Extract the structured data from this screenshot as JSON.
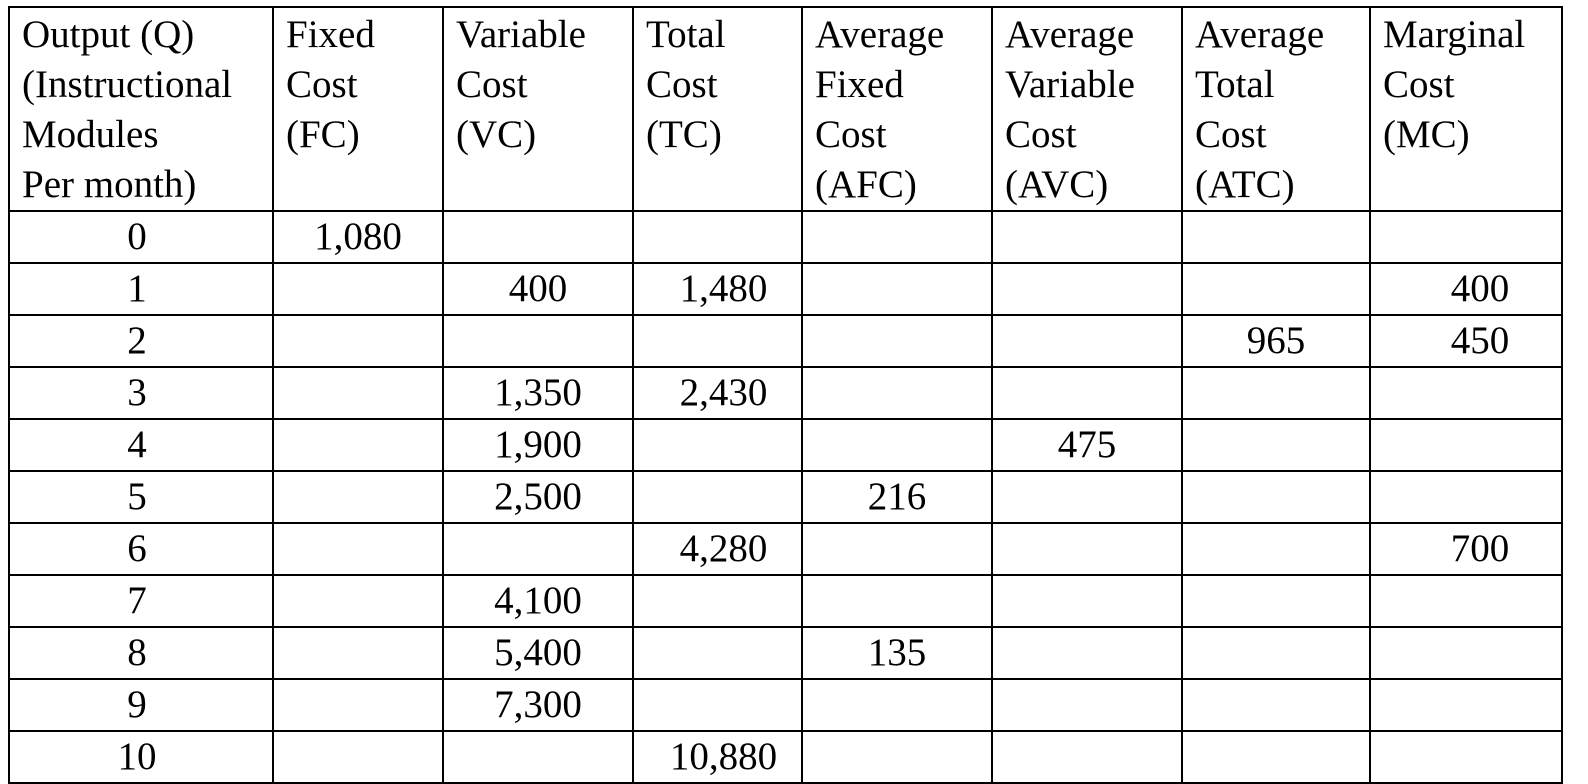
{
  "table": {
    "headers": [
      [
        "Output (Q)",
        "(Instructional",
        "Modules",
        "Per month)"
      ],
      [
        "Fixed",
        "Cost",
        "(FC)"
      ],
      [
        "Variable",
        "Cost",
        "(VC)"
      ],
      [
        "Total",
        "Cost",
        "(TC)"
      ],
      [
        "Average",
        "Fixed",
        "Cost",
        "(AFC)"
      ],
      [
        "Average",
        "Variable",
        "Cost",
        "(AVC)"
      ],
      [
        "Average",
        "Total",
        "Cost",
        "(ATC)"
      ],
      [
        "Marginal",
        "Cost",
        "(MC)"
      ]
    ],
    "rows": [
      [
        "0",
        "1,080",
        "",
        "",
        "",
        "",
        "",
        ""
      ],
      [
        "1",
        "",
        "400",
        "1,480",
        "",
        "",
        "",
        "400"
      ],
      [
        "2",
        "",
        "",
        "",
        "",
        "",
        "965",
        "450"
      ],
      [
        "3",
        "",
        "1,350",
        "2,430",
        "",
        "",
        "",
        ""
      ],
      [
        "4",
        "",
        "1,900",
        "",
        "",
        "475",
        "",
        ""
      ],
      [
        "5",
        "",
        "2,500",
        "",
        "216",
        "",
        "",
        ""
      ],
      [
        "6",
        "",
        "",
        "4,280",
        "",
        "",
        "",
        "700"
      ],
      [
        "7",
        "",
        "4,100",
        "",
        "",
        "",
        "",
        ""
      ],
      [
        "8",
        "",
        "5,400",
        "",
        "135",
        "",
        "",
        ""
      ],
      [
        "9",
        "",
        "7,300",
        "",
        "",
        "",
        "",
        ""
      ],
      [
        "10",
        "",
        "",
        "10,880",
        "",
        "",
        "",
        ""
      ]
    ]
  }
}
